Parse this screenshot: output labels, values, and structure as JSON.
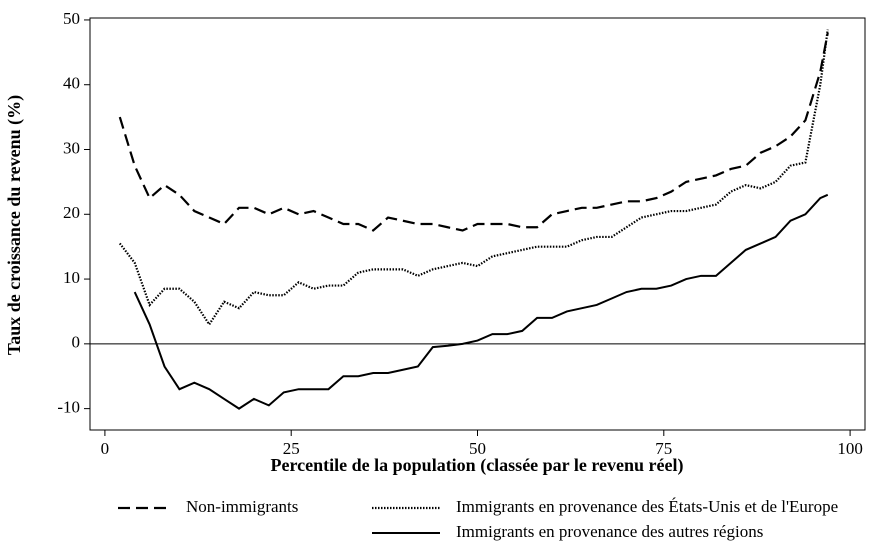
{
  "chart_data": {
    "type": "line",
    "x_label": "Percentile de la population (classée par le revenu réel)",
    "y_label": "Taux de croissance du revenu (%)",
    "x": [
      2,
      4,
      6,
      8,
      10,
      12,
      14,
      16,
      18,
      20,
      22,
      24,
      26,
      28,
      30,
      32,
      34,
      36,
      38,
      40,
      42,
      44,
      46,
      48,
      50,
      52,
      54,
      56,
      58,
      60,
      62,
      64,
      66,
      68,
      70,
      72,
      74,
      76,
      78,
      80,
      82,
      84,
      86,
      88,
      90,
      92,
      94,
      96,
      97
    ],
    "series": [
      {
        "name": "Non-immigrants",
        "color": "#000000",
        "style": "dashed",
        "values": [
          35,
          27.5,
          22.5,
          24.5,
          23,
          20.5,
          19.5,
          18.5,
          21,
          21,
          20,
          21,
          20,
          20.5,
          19.5,
          18.5,
          18.5,
          17.5,
          19.5,
          19,
          18.5,
          18.5,
          18,
          17.5,
          18.5,
          18.5,
          18.5,
          18,
          18,
          20,
          20.5,
          21,
          21,
          21.5,
          22,
          22,
          22.5,
          23.5,
          25,
          25.5,
          26,
          27,
          27.5,
          29.5,
          30.5,
          32,
          34.5,
          42,
          48
        ]
      },
      {
        "name": "Immigrants en provenance des États-Unis et de l'Europe",
        "color": "#000000",
        "style": "dotted",
        "values": [
          15.5,
          12.5,
          6,
          8.5,
          8.5,
          6.5,
          3,
          6.5,
          5.5,
          8,
          7.5,
          7.5,
          9.5,
          8.5,
          9,
          9,
          11,
          11.5,
          11.5,
          11.5,
          10.5,
          11.5,
          12,
          12.5,
          12,
          13.5,
          14,
          14.5,
          15,
          15,
          15,
          16,
          16.5,
          16.5,
          18,
          19.5,
          20,
          20.5,
          20.5,
          21,
          21.5,
          23.5,
          24.5,
          24,
          25,
          27.5,
          28,
          40,
          48.5
        ]
      },
      {
        "name": "Immigrants en provenance des autres régions",
        "color": "#000000",
        "style": "solid",
        "values": [
          null,
          8,
          3,
          -3.5,
          -7,
          -6,
          -7,
          -8.5,
          -10,
          -8.5,
          -9.5,
          -7.5,
          -7,
          -7,
          -7,
          -5,
          -5,
          -4.5,
          -4.5,
          -4,
          -3.5,
          -0.5,
          -0.3,
          0,
          0.5,
          1.5,
          1.5,
          2,
          4,
          4,
          5,
          5.5,
          6,
          7,
          8,
          8.5,
          8.5,
          9,
          10,
          10.5,
          10.5,
          12.5,
          14.5,
          15.5,
          16.5,
          19,
          20,
          22.5,
          23
        ]
      }
    ],
    "xlim": [
      -2,
      102
    ],
    "ylim": [
      -13.3,
      50.3
    ],
    "xticks": [
      0,
      25,
      50,
      75,
      100
    ],
    "yticks": [
      -10,
      0,
      10,
      20,
      30,
      40,
      50
    ],
    "hline": 0
  }
}
